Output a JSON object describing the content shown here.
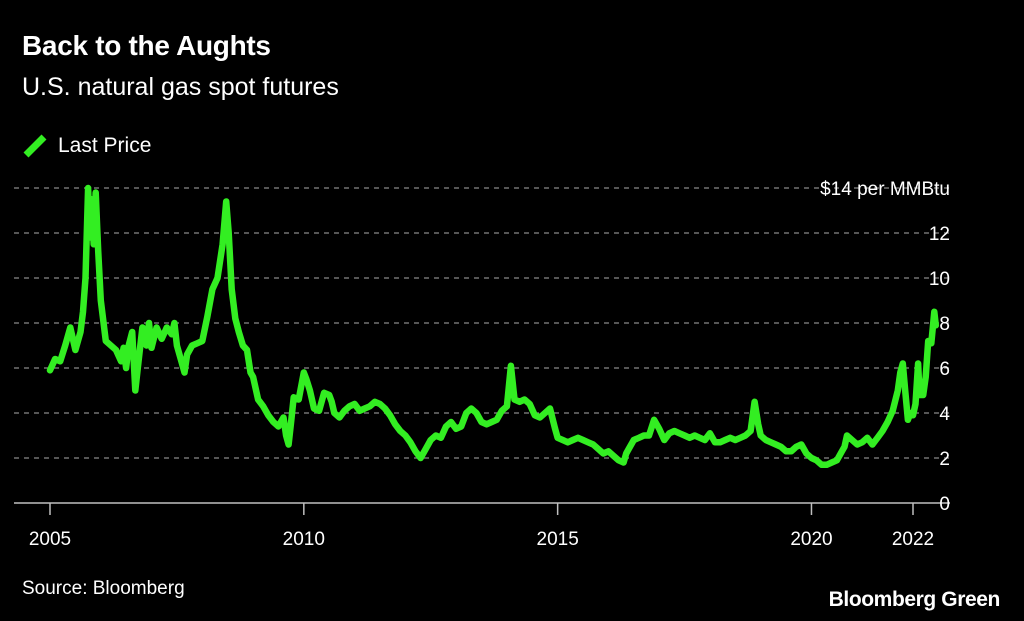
{
  "chart_data": {
    "type": "line",
    "title": "Back to the Aughts",
    "subtitle": "U.S. natural gas spot futures",
    "source": "Source: Bloomberg",
    "brand": "Bloomberg Green",
    "legend": {
      "placement": "top-left",
      "entries": [
        "Last Price"
      ]
    },
    "series_color": "#33ee22",
    "grid": true,
    "xlim": [
      2005,
      2022.5
    ],
    "ylim": [
      0,
      14
    ],
    "x_ticks": [
      {
        "value": 2005,
        "label": "2005"
      },
      {
        "value": 2010,
        "label": "2010"
      },
      {
        "value": 2015,
        "label": "2015"
      },
      {
        "value": 2020,
        "label": "2020"
      },
      {
        "value": 2022,
        "label": "2022"
      }
    ],
    "y_ticks": [
      {
        "value": 0,
        "label": "0"
      },
      {
        "value": 2,
        "label": "2"
      },
      {
        "value": 4,
        "label": "4"
      },
      {
        "value": 6,
        "label": "6"
      },
      {
        "value": 8,
        "label": "8"
      },
      {
        "value": 10,
        "label": "10"
      },
      {
        "value": 12,
        "label": "12"
      },
      {
        "value": 14,
        "label": "$14 per MMBtu"
      }
    ],
    "series": [
      {
        "name": "Last Price",
        "points": [
          [
            2005.0,
            5.9
          ],
          [
            2005.1,
            6.4
          ],
          [
            2005.2,
            6.3
          ],
          [
            2005.3,
            7.0
          ],
          [
            2005.4,
            7.8
          ],
          [
            2005.5,
            6.8
          ],
          [
            2005.6,
            7.6
          ],
          [
            2005.65,
            8.5
          ],
          [
            2005.7,
            10.0
          ],
          [
            2005.75,
            14.0
          ],
          [
            2005.78,
            11.8
          ],
          [
            2005.82,
            13.5
          ],
          [
            2005.86,
            11.5
          ],
          [
            2005.9,
            13.8
          ],
          [
            2005.95,
            11.2
          ],
          [
            2006.0,
            9.0
          ],
          [
            2006.1,
            7.2
          ],
          [
            2006.2,
            7.0
          ],
          [
            2006.3,
            6.8
          ],
          [
            2006.4,
            6.3
          ],
          [
            2006.45,
            6.9
          ],
          [
            2006.5,
            6.0
          ],
          [
            2006.55,
            7.0
          ],
          [
            2006.62,
            7.6
          ],
          [
            2006.68,
            5.0
          ],
          [
            2006.75,
            6.4
          ],
          [
            2006.82,
            7.8
          ],
          [
            2006.9,
            7.0
          ],
          [
            2006.95,
            8.0
          ],
          [
            2007.0,
            6.9
          ],
          [
            2007.1,
            7.8
          ],
          [
            2007.2,
            7.3
          ],
          [
            2007.3,
            7.8
          ],
          [
            2007.4,
            7.5
          ],
          [
            2007.45,
            8.0
          ],
          [
            2007.5,
            7.0
          ],
          [
            2007.6,
            6.2
          ],
          [
            2007.65,
            5.8
          ],
          [
            2007.7,
            6.6
          ],
          [
            2007.8,
            7.0
          ],
          [
            2007.9,
            7.1
          ],
          [
            2008.0,
            7.2
          ],
          [
            2008.1,
            8.3
          ],
          [
            2008.2,
            9.5
          ],
          [
            2008.3,
            10.0
          ],
          [
            2008.4,
            11.5
          ],
          [
            2008.47,
            13.4
          ],
          [
            2008.52,
            12.0
          ],
          [
            2008.58,
            9.5
          ],
          [
            2008.65,
            8.2
          ],
          [
            2008.72,
            7.6
          ],
          [
            2008.8,
            7.0
          ],
          [
            2008.88,
            6.8
          ],
          [
            2008.95,
            5.8
          ],
          [
            2009.0,
            5.6
          ],
          [
            2009.1,
            4.6
          ],
          [
            2009.2,
            4.3
          ],
          [
            2009.3,
            3.9
          ],
          [
            2009.4,
            3.6
          ],
          [
            2009.5,
            3.4
          ],
          [
            2009.6,
            3.8
          ],
          [
            2009.65,
            3.0
          ],
          [
            2009.7,
            2.6
          ],
          [
            2009.75,
            3.6
          ],
          [
            2009.8,
            4.7
          ],
          [
            2009.9,
            4.6
          ],
          [
            2010.0,
            5.8
          ],
          [
            2010.05,
            5.5
          ],
          [
            2010.12,
            5.0
          ],
          [
            2010.2,
            4.2
          ],
          [
            2010.3,
            4.1
          ],
          [
            2010.4,
            4.9
          ],
          [
            2010.5,
            4.8
          ],
          [
            2010.55,
            4.5
          ],
          [
            2010.6,
            4.0
          ],
          [
            2010.7,
            3.8
          ],
          [
            2010.8,
            4.1
          ],
          [
            2010.9,
            4.3
          ],
          [
            2011.0,
            4.4
          ],
          [
            2011.1,
            4.1
          ],
          [
            2011.2,
            4.2
          ],
          [
            2011.3,
            4.3
          ],
          [
            2011.4,
            4.5
          ],
          [
            2011.5,
            4.4
          ],
          [
            2011.6,
            4.2
          ],
          [
            2011.7,
            3.9
          ],
          [
            2011.8,
            3.5
          ],
          [
            2011.9,
            3.2
          ],
          [
            2012.0,
            3.0
          ],
          [
            2012.1,
            2.7
          ],
          [
            2012.2,
            2.3
          ],
          [
            2012.3,
            2.0
          ],
          [
            2012.4,
            2.4
          ],
          [
            2012.5,
            2.8
          ],
          [
            2012.6,
            3.0
          ],
          [
            2012.7,
            2.9
          ],
          [
            2012.8,
            3.4
          ],
          [
            2012.9,
            3.6
          ],
          [
            2013.0,
            3.3
          ],
          [
            2013.1,
            3.4
          ],
          [
            2013.2,
            4.0
          ],
          [
            2013.3,
            4.2
          ],
          [
            2013.4,
            4.0
          ],
          [
            2013.5,
            3.6
          ],
          [
            2013.6,
            3.5
          ],
          [
            2013.7,
            3.6
          ],
          [
            2013.8,
            3.7
          ],
          [
            2013.9,
            4.1
          ],
          [
            2014.0,
            4.3
          ],
          [
            2014.08,
            6.1
          ],
          [
            2014.15,
            4.6
          ],
          [
            2014.25,
            4.5
          ],
          [
            2014.35,
            4.6
          ],
          [
            2014.45,
            4.4
          ],
          [
            2014.55,
            3.9
          ],
          [
            2014.65,
            3.8
          ],
          [
            2014.75,
            4.0
          ],
          [
            2014.85,
            4.2
          ],
          [
            2014.95,
            3.3
          ],
          [
            2015.0,
            2.9
          ],
          [
            2015.1,
            2.8
          ],
          [
            2015.2,
            2.7
          ],
          [
            2015.3,
            2.8
          ],
          [
            2015.4,
            2.9
          ],
          [
            2015.5,
            2.8
          ],
          [
            2015.6,
            2.7
          ],
          [
            2015.7,
            2.6
          ],
          [
            2015.8,
            2.4
          ],
          [
            2015.9,
            2.2
          ],
          [
            2016.0,
            2.3
          ],
          [
            2016.1,
            2.1
          ],
          [
            2016.2,
            1.9
          ],
          [
            2016.3,
            1.8
          ],
          [
            2016.35,
            2.2
          ],
          [
            2016.4,
            2.4
          ],
          [
            2016.5,
            2.8
          ],
          [
            2016.6,
            2.9
          ],
          [
            2016.7,
            3.0
          ],
          [
            2016.8,
            3.0
          ],
          [
            2016.9,
            3.7
          ],
          [
            2017.0,
            3.3
          ],
          [
            2017.1,
            2.8
          ],
          [
            2017.2,
            3.1
          ],
          [
            2017.3,
            3.2
          ],
          [
            2017.4,
            3.1
          ],
          [
            2017.5,
            3.0
          ],
          [
            2017.6,
            2.9
          ],
          [
            2017.7,
            3.0
          ],
          [
            2017.8,
            2.9
          ],
          [
            2017.9,
            2.8
          ],
          [
            2018.0,
            3.1
          ],
          [
            2018.1,
            2.7
          ],
          [
            2018.2,
            2.7
          ],
          [
            2018.3,
            2.8
          ],
          [
            2018.4,
            2.9
          ],
          [
            2018.5,
            2.8
          ],
          [
            2018.6,
            2.9
          ],
          [
            2018.7,
            3.0
          ],
          [
            2018.8,
            3.2
          ],
          [
            2018.88,
            4.5
          ],
          [
            2018.95,
            3.5
          ],
          [
            2019.0,
            3.0
          ],
          [
            2019.1,
            2.8
          ],
          [
            2019.2,
            2.7
          ],
          [
            2019.3,
            2.6
          ],
          [
            2019.4,
            2.5
          ],
          [
            2019.5,
            2.3
          ],
          [
            2019.6,
            2.3
          ],
          [
            2019.7,
            2.5
          ],
          [
            2019.8,
            2.6
          ],
          [
            2019.9,
            2.2
          ],
          [
            2020.0,
            2.0
          ],
          [
            2020.1,
            1.9
          ],
          [
            2020.2,
            1.7
          ],
          [
            2020.3,
            1.7
          ],
          [
            2020.4,
            1.8
          ],
          [
            2020.5,
            1.9
          ],
          [
            2020.6,
            2.3
          ],
          [
            2020.65,
            2.5
          ],
          [
            2020.7,
            3.0
          ],
          [
            2020.8,
            2.8
          ],
          [
            2020.9,
            2.6
          ],
          [
            2021.0,
            2.7
          ],
          [
            2021.1,
            2.9
          ],
          [
            2021.2,
            2.6
          ],
          [
            2021.3,
            2.9
          ],
          [
            2021.4,
            3.2
          ],
          [
            2021.5,
            3.6
          ],
          [
            2021.6,
            4.1
          ],
          [
            2021.7,
            5.0
          ],
          [
            2021.75,
            5.8
          ],
          [
            2021.8,
            6.2
          ],
          [
            2021.85,
            4.9
          ],
          [
            2021.9,
            3.7
          ],
          [
            2021.95,
            4.0
          ],
          [
            2022.0,
            3.9
          ],
          [
            2022.05,
            4.4
          ],
          [
            2022.1,
            6.2
          ],
          [
            2022.13,
            4.8
          ],
          [
            2022.2,
            4.8
          ],
          [
            2022.25,
            5.6
          ],
          [
            2022.3,
            7.2
          ],
          [
            2022.36,
            7.1
          ],
          [
            2022.42,
            8.5
          ],
          [
            2022.45,
            7.9
          ]
        ]
      }
    ]
  }
}
